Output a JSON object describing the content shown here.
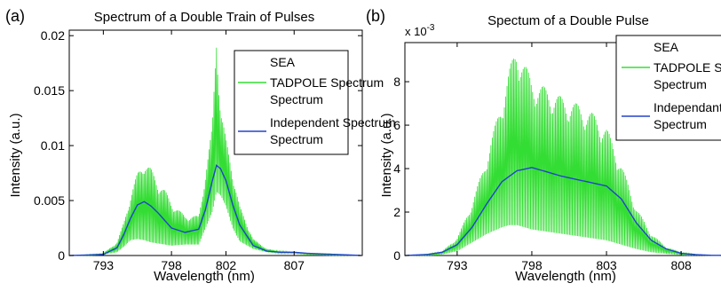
{
  "figure_title": "",
  "chart_data": [
    {
      "panel_label": "(a)",
      "type": "line",
      "title": "Spectrum of a Double Train of Pulses",
      "xlabel": "Wavelength (nm)",
      "ylabel": "Intensity (a.u.)",
      "y_exponent": "",
      "xlim": [
        790.5,
        812
      ],
      "ylim": [
        0,
        0.0205
      ],
      "xticks": [
        793,
        798,
        802,
        807
      ],
      "xtick_labels": [
        "793",
        "798",
        "802",
        "807"
      ],
      "yticks": [
        0,
        0.005,
        0.01,
        0.015,
        0.02
      ],
      "ytick_labels": [
        "0",
        "0.005",
        "0.01",
        "0.015",
        "0.02"
      ],
      "grid": false,
      "legend_position": "top-right",
      "legend": [
        "SEA",
        "TADPOLE Spectrum",
        "Independent Spectrum"
      ],
      "series": [
        {
          "name": "SEA",
          "color": "#ffffff",
          "x": [],
          "y": []
        },
        {
          "name": "TADPOLE Spectrum",
          "color": "#33dd33",
          "style": "oscillating",
          "x": [
            790.5,
            792,
            793,
            794,
            794.5,
            795,
            795.5,
            796,
            796.5,
            797,
            797.5,
            798,
            799,
            800,
            800.5,
            801,
            801.3,
            801.6,
            802,
            802.5,
            803,
            804,
            805,
            806,
            807,
            808,
            810,
            812
          ],
          "y_upper": [
            0,
            0.0001,
            0.0002,
            0.0012,
            0.003,
            0.0055,
            0.0075,
            0.0087,
            0.0079,
            0.0067,
            0.006,
            0.0048,
            0.0036,
            0.0036,
            0.0075,
            0.0118,
            0.0205,
            0.0135,
            0.0106,
            0.0075,
            0.0045,
            0.0015,
            0.0006,
            0.0004,
            0.0003,
            0.0002,
            0.0001,
            0
          ],
          "y_lower": [
            0,
            0,
            0.0001,
            0.0003,
            0.0008,
            0.0014,
            0.0015,
            0.0014,
            0.0012,
            0.0011,
            0.001,
            0.0009,
            0.001,
            0.001,
            0.0025,
            0.004,
            0.0058,
            0.0055,
            0.0045,
            0.0025,
            0.0013,
            0.0006,
            0.0003,
            0.0002,
            0.0002,
            0.0001,
            0,
            0
          ]
        },
        {
          "name": "Independent Spectrum",
          "color": "#2244cc",
          "x": [
            790.5,
            792,
            793,
            794,
            794.5,
            795,
            795.5,
            796,
            796.5,
            797,
            797.5,
            798,
            799,
            800,
            800.5,
            801,
            801.3,
            801.6,
            802,
            802.5,
            803,
            804,
            805,
            806,
            807,
            808,
            810,
            812
          ],
          "y": [
            0,
            5e-05,
            0.0001,
            0.0007,
            0.0019,
            0.0034,
            0.0046,
            0.0049,
            0.0045,
            0.0039,
            0.0032,
            0.0025,
            0.0021,
            0.0024,
            0.0042,
            0.0068,
            0.0082,
            0.0079,
            0.0068,
            0.0046,
            0.0028,
            0.0009,
            0.0004,
            0.0003,
            0.0003,
            0.0002,
            0.0001,
            0
          ]
        }
      ]
    },
    {
      "panel_label": "(b)",
      "type": "line",
      "title": "Spectum of a Double Pulse",
      "xlabel": "Wavelength (nm)",
      "ylabel": "Intensity (a.u.)",
      "y_exponent": "x 10",
      "y_exponent_power": "-3",
      "xlim": [
        789.5,
        811.5
      ],
      "ylim": [
        0,
        9.8
      ],
      "xticks": [
        793,
        798,
        803,
        808
      ],
      "xtick_labels": [
        "793",
        "798",
        "803",
        "808"
      ],
      "yticks": [
        0,
        2,
        4,
        6,
        8
      ],
      "ytick_labels": [
        "0",
        "2",
        "4",
        "6",
        "8"
      ],
      "grid": false,
      "legend_position": "top-right",
      "legend": [
        "SEA",
        "TADPOLE Spectrum",
        "Independant Spectrum"
      ],
      "series": [
        {
          "name": "SEA",
          "color": "#ffffff",
          "x": [],
          "y": []
        },
        {
          "name": "TADPOLE Spectrum",
          "color": "#33dd33",
          "style": "oscillating",
          "x": [
            789.5,
            791,
            792,
            793,
            794,
            795,
            796,
            796.5,
            797,
            797.5,
            798,
            799,
            800,
            801,
            802,
            803,
            804,
            805,
            806,
            807,
            808,
            809,
            810,
            811.5
          ],
          "y_upper": [
            0,
            0.05,
            0.2,
            0.8,
            2.4,
            4.6,
            7.2,
            8.6,
            9.7,
            8.9,
            8.1,
            7.7,
            7.3,
            7.0,
            6.6,
            5.9,
            4.2,
            2.2,
            1.0,
            0.4,
            0.15,
            0.05,
            0.02,
            0
          ],
          "y_lower": [
            0,
            0,
            0.05,
            0.2,
            0.6,
            1.0,
            1.3,
            1.4,
            1.4,
            1.3,
            1.2,
            1.1,
            1.0,
            0.9,
            0.8,
            0.7,
            0.5,
            0.3,
            0.15,
            0.08,
            0.03,
            0.01,
            0,
            0
          ]
        },
        {
          "name": "Independant Spectrum",
          "color": "#2244cc",
          "x": [
            789.5,
            791,
            792,
            793,
            794,
            795,
            796,
            797,
            798,
            799,
            800,
            801,
            802,
            803,
            804,
            805,
            806,
            807,
            808,
            809,
            810,
            811.5
          ],
          "y": [
            0,
            0.05,
            0.15,
            0.5,
            1.3,
            2.4,
            3.4,
            3.9,
            4.05,
            3.85,
            3.65,
            3.5,
            3.35,
            3.2,
            2.6,
            1.5,
            0.7,
            0.3,
            0.1,
            0.04,
            0.01,
            0
          ]
        }
      ]
    }
  ]
}
